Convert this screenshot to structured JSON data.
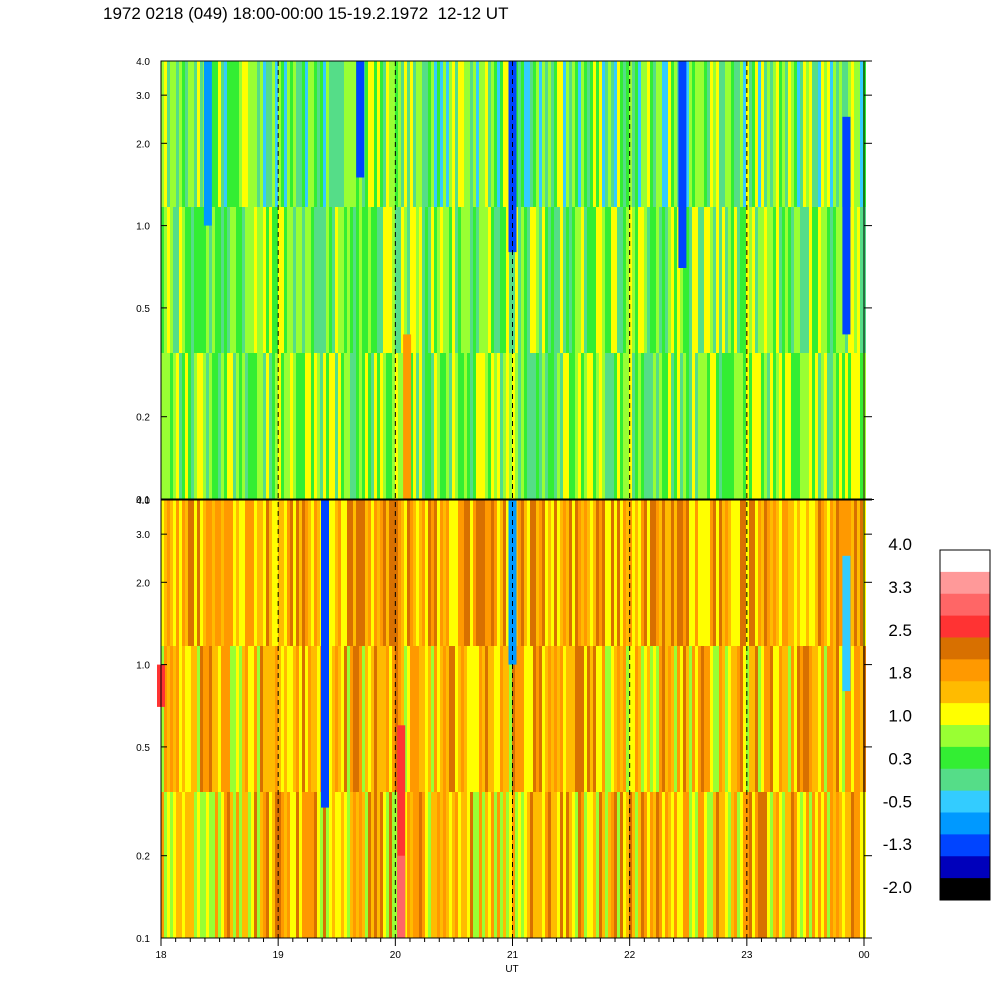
{
  "title": "1972 0218 (049) 18:00-00:00 15-19.2.1972  12-12 UT",
  "chart_data": {
    "type": "heatmap",
    "xlabel": "UT",
    "x_ticks": [
      "18",
      "19",
      "20",
      "21",
      "22",
      "23",
      "00"
    ],
    "y_scale": "log",
    "ylim": [
      0.1,
      4.0
    ],
    "y_ticks": [
      "0.1",
      "0.2",
      "0.5",
      "1.0",
      "2.0",
      "3.0",
      "4.0"
    ],
    "dashed_vertical_lines_at": [
      "19",
      "20",
      "21",
      "22",
      "23"
    ],
    "panels": [
      {
        "position": "top",
        "dominant_level": 0.6,
        "features": [
          {
            "x": 20.1,
            "y_from": 0.1,
            "y_to": 0.4,
            "level": 2.0
          },
          {
            "x": 21.0,
            "y_from": 0.8,
            "y_to": 4.0,
            "level": -1.3
          },
          {
            "x": 22.45,
            "y_from": 0.7,
            "y_to": 4.0,
            "level": -1.3
          },
          {
            "x": 23.85,
            "y_from": 0.4,
            "y_to": 2.5,
            "level": -1.3
          },
          {
            "x": 19.7,
            "y_from": 1.5,
            "y_to": 4.0,
            "level": -1.0
          },
          {
            "x": 18.4,
            "y_from": 1.0,
            "y_to": 4.0,
            "level": -0.8
          }
        ]
      },
      {
        "position": "bottom",
        "dominant_level": 1.6,
        "features": [
          {
            "x": 20.05,
            "y_from": 0.1,
            "y_to": 0.6,
            "level": 2.6
          },
          {
            "x": 20.05,
            "y_from": 0.1,
            "y_to": 0.2,
            "level": 3.3
          },
          {
            "x": 19.4,
            "y_from": 0.3,
            "y_to": 4.0,
            "level": -1.0
          },
          {
            "x": 21.0,
            "y_from": 1.0,
            "y_to": 4.0,
            "level": -0.6
          },
          {
            "x": 23.85,
            "y_from": 0.8,
            "y_to": 2.5,
            "level": -0.3
          },
          {
            "x": 18.0,
            "y_from": 0.7,
            "y_to": 1.0,
            "level": 2.6
          }
        ]
      }
    ],
    "colorbar": {
      "labels": [
        "4.0",
        "3.3",
        "2.5",
        "1.8",
        "1.0",
        "0.3",
        "-0.5",
        "-1.3",
        "-2.0"
      ],
      "colors": [
        "#ffffff",
        "#ff9999",
        "#ff6666",
        "#ff3333",
        "#d87000",
        "#ff9900",
        "#ffbb00",
        "#ffff00",
        "#99ff33",
        "#33ee33",
        "#55dd88",
        "#33ccff",
        "#0099ff",
        "#0044ff",
        "#0000bb",
        "#000000"
      ]
    }
  }
}
